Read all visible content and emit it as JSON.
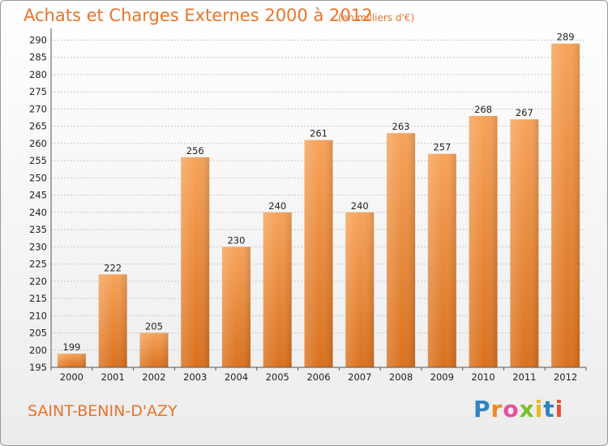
{
  "chart_data": {
    "type": "bar",
    "title": "Achats et Charges Externes 2000 à 2012",
    "subtitle": "(en milliers d'€)",
    "categories": [
      "2000",
      "2001",
      "2002",
      "2003",
      "2004",
      "2005",
      "2006",
      "2007",
      "2008",
      "2009",
      "2010",
      "2011",
      "2012"
    ],
    "values": [
      199,
      222,
      205,
      256,
      230,
      240,
      261,
      240,
      263,
      257,
      268,
      267,
      289
    ],
    "ylim": [
      195,
      292
    ],
    "yticks": [
      195,
      200,
      205,
      210,
      215,
      220,
      225,
      230,
      235,
      240,
      245,
      250,
      255,
      260,
      265,
      270,
      275,
      280,
      285,
      290
    ],
    "grid": true,
    "bar_color": "#f08a2e"
  },
  "footer": {
    "city": "SAINT-BENIN-D'AZY",
    "logo": [
      "P",
      "r",
      "o",
      "x",
      "i",
      "t",
      "i"
    ]
  }
}
